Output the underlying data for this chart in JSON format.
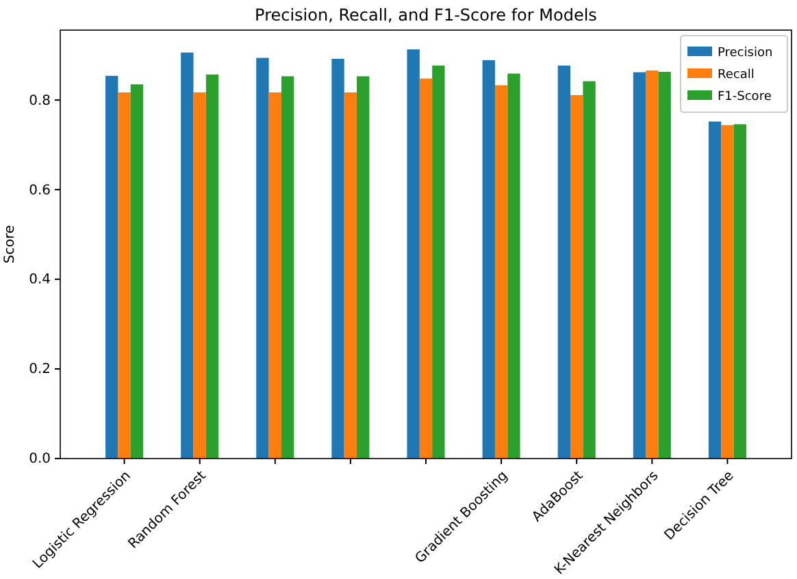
{
  "chart_data": {
    "type": "bar",
    "title": "Precision, Recall, and F1-Score for Models",
    "ylabel": "Score",
    "categories": [
      "Logistic Regression",
      "Random Forest",
      null,
      null,
      null,
      "Gradient Boosting",
      "AdaBoost",
      "K-Nearest Neighbors",
      "Decision Tree"
    ],
    "series": [
      {
        "name": "Precision",
        "color": "#1f77b4",
        "values": [
          0.854,
          0.906,
          0.894,
          0.892,
          0.913,
          0.889,
          0.877,
          0.862,
          0.752
        ]
      },
      {
        "name": "Recall",
        "color": "#ff7f0e",
        "values": [
          0.817,
          0.817,
          0.817,
          0.817,
          0.848,
          0.833,
          0.811,
          0.866,
          0.744
        ]
      },
      {
        "name": "F1-Score",
        "color": "#2ca02c",
        "values": [
          0.835,
          0.857,
          0.853,
          0.853,
          0.877,
          0.859,
          0.842,
          0.863,
          0.746
        ]
      }
    ],
    "ylim": [
      0,
      0.956
    ],
    "yticks": [
      {
        "value": 0,
        "label": "0.0"
      },
      {
        "value": 0.2,
        "label": "0.2"
      },
      {
        "value": 0.4,
        "label": "0.4"
      },
      {
        "value": 0.6,
        "label": "0.6"
      },
      {
        "value": 0.8,
        "label": "0.8"
      }
    ],
    "legend": "top right",
    "grid": false
  }
}
